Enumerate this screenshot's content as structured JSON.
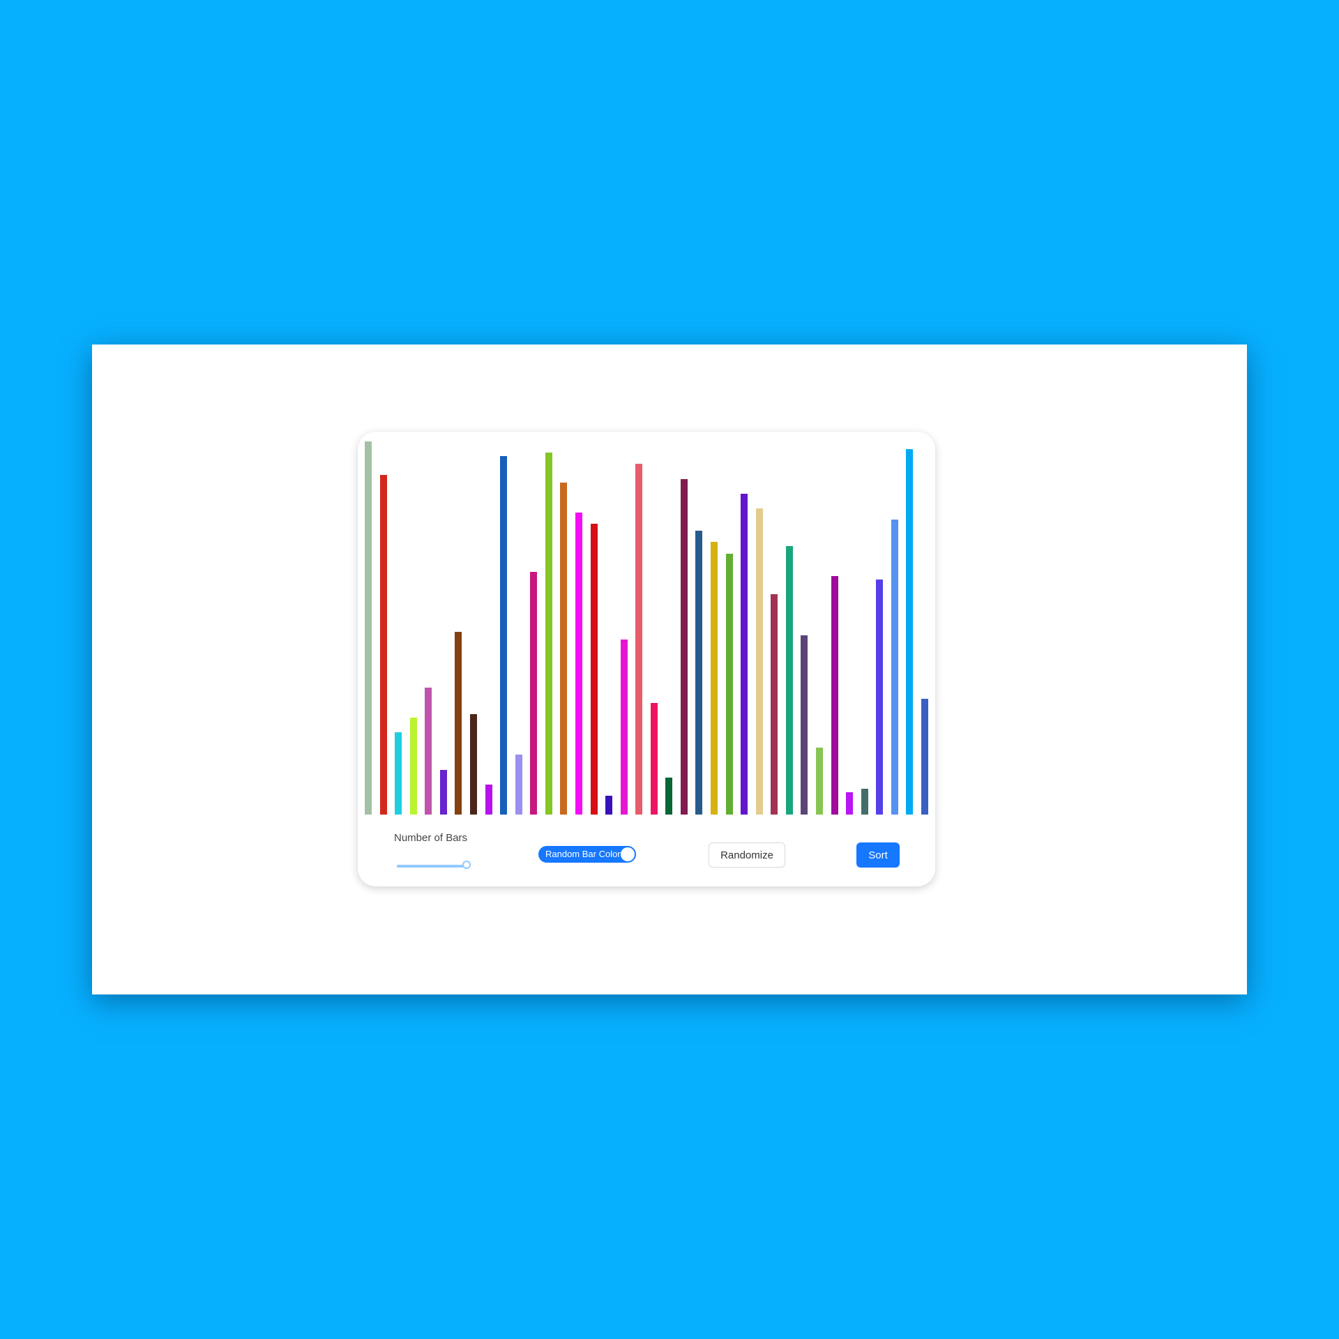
{
  "controls": {
    "bars_label": "Number of Bars",
    "bars_value": 38,
    "bars_max": 38,
    "random_color_label": "Random Bar Color",
    "random_color_on": true,
    "randomize_label": "Randomize",
    "sort_label": "Sort"
  },
  "colors": {
    "background": "#07b0ff",
    "accent": "#1677ff",
    "slider": "#91caff"
  },
  "chart_data": {
    "type": "bar",
    "y_max": 100,
    "values": [
      100,
      91,
      22,
      26,
      34,
      12,
      49,
      27,
      8,
      96,
      16,
      65,
      97,
      89,
      81,
      78,
      5,
      47,
      94,
      30,
      10,
      90,
      76,
      73,
      70,
      86,
      82,
      59,
      72,
      48,
      18,
      64,
      6,
      7,
      63,
      79,
      98,
      31
    ],
    "bar_colors": [
      "#a3c1a3",
      "#d3271d",
      "#1ed0de",
      "#b9f42f",
      "#c054ac",
      "#6625cf",
      "#85400f",
      "#4c261d",
      "#b712ee",
      "#165fbb",
      "#9b8ff2",
      "#c7177f",
      "#84c624",
      "#c86a1e",
      "#f60df8",
      "#d60f14",
      "#3810bc",
      "#e617d2",
      "#e65c6d",
      "#ed1462",
      "#096636",
      "#801c50",
      "#275b8c",
      "#d8b10f",
      "#62ae32",
      "#6216cb",
      "#e4cc90",
      "#a23352",
      "#1aa67d",
      "#5b4578",
      "#87c552",
      "#9f0c9b",
      "#ba15f3",
      "#436e69",
      "#563ee9",
      "#5692ef",
      "#00aaf2",
      "#3b5ec3"
    ]
  }
}
